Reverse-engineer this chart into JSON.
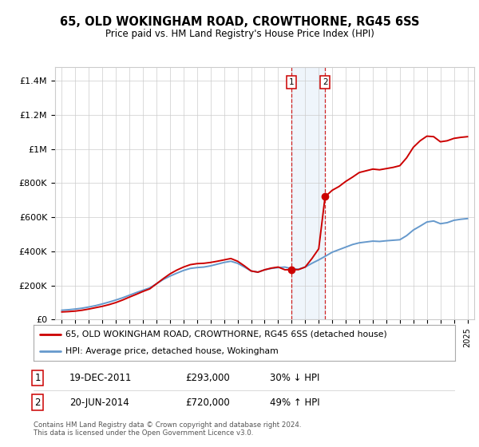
{
  "title": "65, OLD WOKINGHAM ROAD, CROWTHORNE, RG45 6SS",
  "subtitle": "Price paid vs. HM Land Registry's House Price Index (HPI)",
  "ylabel_ticks": [
    "£0",
    "£200K",
    "£400K",
    "£600K",
    "£800K",
    "£1M",
    "£1.2M",
    "£1.4M"
  ],
  "ytick_values": [
    0,
    200000,
    400000,
    600000,
    800000,
    1000000,
    1200000,
    1400000
  ],
  "ylim": [
    0,
    1480000
  ],
  "xlim_start": 1994.5,
  "xlim_end": 2025.5,
  "red_color": "#cc0000",
  "blue_color": "#6699cc",
  "point1_x": 2011.97,
  "point1_y": 293000,
  "point2_x": 2014.47,
  "point2_y": 720000,
  "legend_line1": "65, OLD WOKINGHAM ROAD, CROWTHORNE, RG45 6SS (detached house)",
  "legend_line2": "HPI: Average price, detached house, Wokingham",
  "table_row1": [
    "1",
    "19-DEC-2011",
    "£293,000",
    "30% ↓ HPI"
  ],
  "table_row2": [
    "2",
    "20-JUN-2014",
    "£720,000",
    "49% ↑ HPI"
  ],
  "footnote": "Contains HM Land Registry data © Crown copyright and database right 2024.\nThis data is licensed under the Open Government Licence v3.0.",
  "background_color": "#ffffff",
  "grid_color": "#cccccc",
  "highlight_bg": "#ddeeff",
  "years_hpi": [
    1995.0,
    1995.5,
    1996.0,
    1996.5,
    1997.0,
    1997.5,
    1998.0,
    1998.5,
    1999.0,
    1999.5,
    2000.0,
    2000.5,
    2001.0,
    2001.5,
    2002.0,
    2002.5,
    2003.0,
    2003.5,
    2004.0,
    2004.5,
    2005.0,
    2005.5,
    2006.0,
    2006.5,
    2007.0,
    2007.5,
    2008.0,
    2008.5,
    2009.0,
    2009.5,
    2010.0,
    2010.5,
    2011.0,
    2011.5,
    2012.0,
    2012.5,
    2013.0,
    2013.5,
    2014.0,
    2014.5,
    2015.0,
    2015.5,
    2016.0,
    2016.5,
    2017.0,
    2017.5,
    2018.0,
    2018.5,
    2019.0,
    2019.5,
    2020.0,
    2020.5,
    2021.0,
    2021.5,
    2022.0,
    2022.5,
    2023.0,
    2023.5,
    2024.0,
    2024.5,
    2025.0
  ],
  "hpi_values": [
    55000,
    58000,
    62000,
    67000,
    74000,
    82000,
    92000,
    103000,
    115000,
    128000,
    143000,
    158000,
    172000,
    186000,
    210000,
    235000,
    255000,
    272000,
    288000,
    300000,
    305000,
    308000,
    315000,
    325000,
    335000,
    342000,
    330000,
    308000,
    285000,
    278000,
    292000,
    300000,
    305000,
    308000,
    298000,
    295000,
    308000,
    330000,
    350000,
    372000,
    395000,
    410000,
    425000,
    440000,
    450000,
    455000,
    460000,
    458000,
    462000,
    465000,
    468000,
    492000,
    525000,
    548000,
    572000,
    578000,
    562000,
    568000,
    582000,
    588000,
    592000
  ],
  "years_red": [
    1995.0,
    1995.5,
    1996.0,
    1996.5,
    1997.0,
    1997.5,
    1998.0,
    1998.5,
    1999.0,
    1999.5,
    2000.0,
    2000.5,
    2001.0,
    2001.5,
    2002.0,
    2002.5,
    2003.0,
    2003.5,
    2004.0,
    2004.5,
    2005.0,
    2005.5,
    2006.0,
    2006.5,
    2007.0,
    2007.5,
    2008.0,
    2008.5,
    2009.0,
    2009.5,
    2010.0,
    2010.5,
    2011.0,
    2011.5,
    2011.97,
    2012.5,
    2013.0,
    2013.5,
    2014.0,
    2014.47,
    2015.0,
    2015.5,
    2016.0,
    2016.5,
    2017.0,
    2017.5,
    2018.0,
    2018.5,
    2019.0,
    2019.5,
    2020.0,
    2020.5,
    2021.0,
    2021.5,
    2022.0,
    2022.5,
    2023.0,
    2023.5,
    2024.0,
    2024.5,
    2025.0
  ],
  "red_values": [
    45000,
    47000,
    50000,
    55000,
    62000,
    70000,
    78000,
    88000,
    100000,
    115000,
    132000,
    148000,
    165000,
    180000,
    210000,
    240000,
    268000,
    290000,
    308000,
    322000,
    328000,
    330000,
    335000,
    342000,
    350000,
    358000,
    342000,
    315000,
    285000,
    278000,
    292000,
    302000,
    308000,
    292000,
    293000,
    293000,
    308000,
    358000,
    415000,
    720000,
    758000,
    780000,
    810000,
    835000,
    862000,
    872000,
    882000,
    878000,
    885000,
    892000,
    902000,
    948000,
    1010000,
    1048000,
    1075000,
    1072000,
    1042000,
    1048000,
    1062000,
    1068000,
    1072000
  ]
}
